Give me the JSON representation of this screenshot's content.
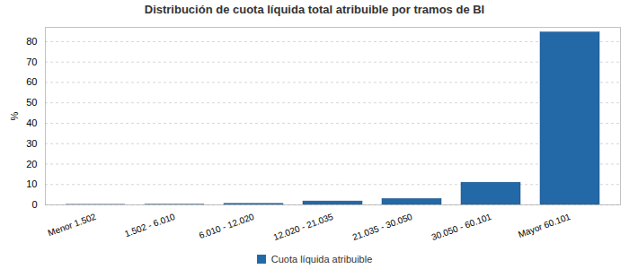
{
  "chart_data": {
    "type": "bar",
    "title": "Distribución de cuota líquida total atribuible por tramos de BI",
    "y_label": "%",
    "categories": [
      "Menor 1.502",
      "1.502 - 6.010",
      "6.010 - 12.020",
      "12.020 - 21.035",
      "21.035 - 30.050",
      "30.050 - 60.101",
      "Mayor 60.101"
    ],
    "series": [
      {
        "name": "Cuota líquida atribuible",
        "color": "#2369a8",
        "values": [
          0.05,
          0.1,
          0.5,
          1.7,
          2.9,
          10.9,
          84.5
        ]
      }
    ],
    "ylim": [
      0,
      87
    ],
    "yticks": [
      0,
      10,
      20,
      30,
      40,
      50,
      60,
      70,
      80
    ],
    "grid": true,
    "legend": "bottom"
  }
}
